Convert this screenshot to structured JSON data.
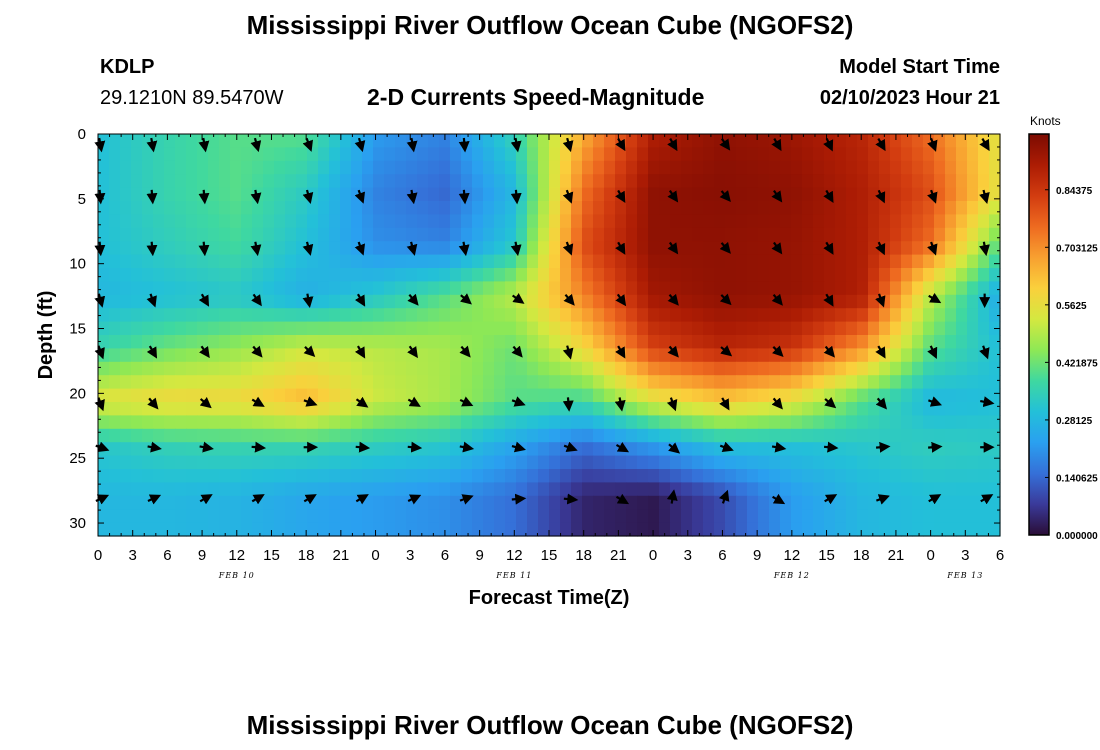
{
  "header": {
    "title": "Mississippi River Outflow Ocean Cube (NGOFS2)",
    "station": "KDLP",
    "coords": "29.1210N  89.5470W",
    "subtitle": "2-D Currents Speed-Magnitude",
    "model_start_label": "Model Start Time",
    "model_start_value": "02/10/2023 Hour 21",
    "footer_title": "Mississippi River Outflow Ocean Cube (NGOFS2)"
  },
  "chart_data": {
    "type": "heatmap",
    "title": "2-D Currents Speed-Magnitude",
    "xlabel": "Forecast Time(Z)",
    "ylabel": "Depth (ft)",
    "x_tick_labels": [
      "0",
      "3",
      "6",
      "9",
      "12",
      "15",
      "18",
      "21",
      "0",
      "3",
      "6",
      "9",
      "12",
      "15",
      "18",
      "21",
      "0",
      "3",
      "6",
      "9",
      "12",
      "15",
      "18",
      "21",
      "0",
      "3",
      "6"
    ],
    "x_range_hours": [
      0,
      78
    ],
    "date_labels": [
      {
        "text": "FEB 10",
        "hour": 12
      },
      {
        "text": "FEB 11",
        "hour": 36
      },
      {
        "text": "FEB 12",
        "hour": 60
      },
      {
        "text": "FEB 13",
        "hour": 75
      }
    ],
    "y_ticks": [
      0,
      5,
      10,
      15,
      20,
      25,
      30
    ],
    "ylim": [
      0,
      31
    ],
    "colorbar": {
      "units": "Knots",
      "min": 0.0,
      "max": 0.98,
      "labels": [
        "0.84375",
        "0.703125",
        "0.5625",
        "0.421875",
        "0.28125",
        "0.140625",
        "0.000000"
      ],
      "label_values": [
        0.84375,
        0.703125,
        0.5625,
        0.421875,
        0.28125,
        0.140625,
        0.0
      ],
      "stops": [
        "#2a0d36",
        "#3a3a9a",
        "#3570d8",
        "#2aa0f0",
        "#23c0d8",
        "#3fd8a0",
        "#8ee855",
        "#d4e840",
        "#fad03c",
        "#f8a030",
        "#ee6a20",
        "#d23c10",
        "#ac1c04",
        "#7c0b02"
      ]
    },
    "depth_levels_ft": [
      0,
      4.5,
      8.5,
      12.5,
      16.5,
      20.5,
      24,
      28
    ],
    "speed_time_hours": [
      0,
      6,
      12,
      18,
      24,
      30,
      36,
      42,
      48,
      54,
      60,
      66,
      72,
      78
    ],
    "speed_knots": [
      [
        0.3,
        0.36,
        0.4,
        0.4,
        0.22,
        0.18,
        0.35,
        0.66,
        0.9,
        0.95,
        0.93,
        0.88,
        0.75,
        0.55
      ],
      [
        0.3,
        0.36,
        0.4,
        0.33,
        0.18,
        0.14,
        0.28,
        0.75,
        0.95,
        0.96,
        0.95,
        0.9,
        0.8,
        0.55
      ],
      [
        0.3,
        0.34,
        0.38,
        0.3,
        0.2,
        0.18,
        0.32,
        0.8,
        0.95,
        0.95,
        0.94,
        0.9,
        0.75,
        0.4
      ],
      [
        0.28,
        0.3,
        0.32,
        0.26,
        0.32,
        0.4,
        0.5,
        0.72,
        0.92,
        0.95,
        0.94,
        0.9,
        0.5,
        0.25
      ],
      [
        0.36,
        0.42,
        0.46,
        0.52,
        0.5,
        0.48,
        0.42,
        0.58,
        0.82,
        0.88,
        0.85,
        0.7,
        0.4,
        0.3
      ],
      [
        0.55,
        0.58,
        0.58,
        0.64,
        0.52,
        0.48,
        0.4,
        0.38,
        0.55,
        0.62,
        0.56,
        0.4,
        0.28,
        0.3
      ],
      [
        0.32,
        0.35,
        0.36,
        0.36,
        0.34,
        0.32,
        0.24,
        0.15,
        0.22,
        0.3,
        0.3,
        0.32,
        0.34,
        0.33
      ],
      [
        0.28,
        0.28,
        0.27,
        0.24,
        0.22,
        0.2,
        0.15,
        0.04,
        0.02,
        0.1,
        0.22,
        0.28,
        0.3,
        0.3
      ]
    ],
    "vector_depths_ft": [
      0.5,
      4.5,
      8.5,
      12.5,
      16.5,
      20.5,
      24,
      28
    ],
    "vector_times_hours": [
      0,
      4.5,
      9,
      13.5,
      18,
      22.5,
      27,
      31.5,
      36,
      40.5,
      45,
      49.5,
      54,
      58.5,
      63,
      67.5,
      72,
      76.5
    ],
    "vector_direction_deg": [
      [
        170,
        170,
        170,
        165,
        160,
        165,
        170,
        175,
        170,
        165,
        150,
        150,
        145,
        150,
        155,
        150,
        160,
        150
      ],
      [
        175,
        175,
        175,
        170,
        165,
        160,
        170,
        175,
        175,
        160,
        150,
        145,
        140,
        145,
        150,
        155,
        160,
        165
      ],
      [
        175,
        175,
        175,
        170,
        165,
        160,
        165,
        170,
        170,
        160,
        150,
        145,
        140,
        145,
        150,
        155,
        160,
        170
      ],
      [
        165,
        160,
        150,
        145,
        170,
        150,
        140,
        130,
        125,
        140,
        145,
        140,
        135,
        140,
        150,
        160,
        120,
        180
      ],
      [
        160,
        150,
        145,
        140,
        135,
        150,
        145,
        140,
        140,
        165,
        150,
        140,
        130,
        135,
        140,
        150,
        155,
        160
      ],
      [
        160,
        140,
        130,
        120,
        110,
        125,
        120,
        115,
        110,
        175,
        170,
        160,
        150,
        140,
        130,
        140,
        110,
        100
      ],
      [
        110,
        100,
        100,
        95,
        90,
        95,
        95,
        100,
        105,
        110,
        120,
        130,
        110,
        100,
        95,
        85,
        85,
        90
      ],
      [
        65,
        65,
        60,
        60,
        60,
        60,
        65,
        70,
        85,
        95,
        120,
        10,
        20,
        120,
        60,
        70,
        60,
        60
      ]
    ]
  }
}
